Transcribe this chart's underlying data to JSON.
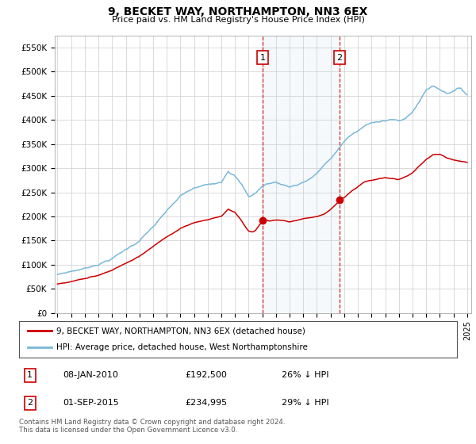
{
  "title": "9, BECKET WAY, NORTHAMPTON, NN3 6EX",
  "subtitle": "Price paid vs. HM Land Registry's House Price Index (HPI)",
  "ylabel_ticks": [
    "£0",
    "£50K",
    "£100K",
    "£150K",
    "£200K",
    "£250K",
    "£300K",
    "£350K",
    "£400K",
    "£450K",
    "£500K",
    "£550K"
  ],
  "ylim": [
    0,
    575000
  ],
  "ytick_values": [
    0,
    50000,
    100000,
    150000,
    200000,
    250000,
    300000,
    350000,
    400000,
    450000,
    500000,
    550000
  ],
  "hpi_color": "#7ab8d9",
  "property_color": "#cc0000",
  "shading_color": "#daeaf5",
  "legend_label1": "9, BECKET WAY, NORTHAMPTON, NN3 6EX (detached house)",
  "legend_label2": "HPI: Average price, detached house, West Northamptonshire",
  "annotation1_date": "08-JAN-2010",
  "annotation1_price": "£192,500",
  "annotation1_hpi": "26% ↓ HPI",
  "annotation2_date": "01-SEP-2015",
  "annotation2_price": "£234,995",
  "annotation2_hpi": "29% ↓ HPI",
  "footer": "Contains HM Land Registry data © Crown copyright and database right 2024.\nThis data is licensed under the Open Government Licence v3.0.",
  "background_color": "#ffffff",
  "grid_color": "#cccccc",
  "sale1_year": 2010.025,
  "sale1_price": 192500,
  "sale2_year": 2015.667,
  "sale2_price": 234995
}
